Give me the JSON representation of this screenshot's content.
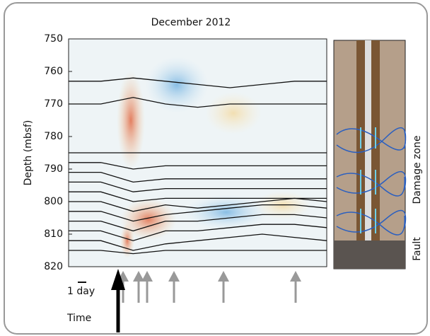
{
  "chart_data": {
    "type": "line",
    "title": "December 2012",
    "y_label": "Depth (mbsf)",
    "ylim": [
      750,
      820
    ],
    "yticks": [
      750,
      760,
      770,
      780,
      790,
      800,
      810,
      820
    ],
    "y_inverted": true,
    "annotations": {
      "scale": "1 day",
      "time": "Time",
      "damage_zone": "Damage zone",
      "fault": "Fault"
    },
    "series": [
      {
        "color": "#111111",
        "values": [
          763,
          763,
          762,
          763,
          764,
          765,
          764,
          763,
          763
        ]
      },
      {
        "color": "#111111",
        "values": [
          770,
          770,
          768,
          770,
          771,
          770,
          770,
          770,
          770
        ]
      },
      {
        "color": "#111111",
        "values": [
          785,
          785,
          785,
          785,
          785,
          785,
          785,
          785,
          785
        ]
      },
      {
        "color": "#111111",
        "values": [
          788,
          788,
          790,
          789,
          789,
          789,
          789,
          789,
          789
        ]
      },
      {
        "color": "#111111",
        "values": [
          791,
          791,
          794,
          793,
          793,
          793,
          793,
          793,
          793
        ]
      },
      {
        "color": "#111111",
        "values": [
          794,
          794,
          797,
          796,
          796,
          796,
          796,
          796,
          796
        ]
      },
      {
        "color": "#111111",
        "values": [
          797,
          797,
          800,
          799,
          799,
          799,
          799,
          799,
          799
        ]
      },
      {
        "color": "#111111",
        "values": [
          800,
          800,
          803,
          801,
          802,
          801,
          800,
          799,
          800
        ]
      },
      {
        "color": "#111111",
        "values": [
          803,
          803,
          806,
          804,
          803,
          802,
          801,
          801,
          802
        ]
      },
      {
        "color": "#111111",
        "values": [
          806,
          806,
          809,
          806,
          806,
          805,
          804,
          804,
          805
        ]
      },
      {
        "color": "#111111",
        "values": [
          809,
          809,
          812,
          809,
          809,
          808,
          807,
          807,
          808
        ]
      },
      {
        "color": "#111111",
        "values": [
          812,
          812,
          815,
          813,
          812,
          811,
          810,
          811,
          812
        ]
      },
      {
        "color": "#111111",
        "values": [
          815,
          815,
          816,
          815,
          815,
          815,
          815,
          815,
          815
        ]
      }
    ]
  }
}
